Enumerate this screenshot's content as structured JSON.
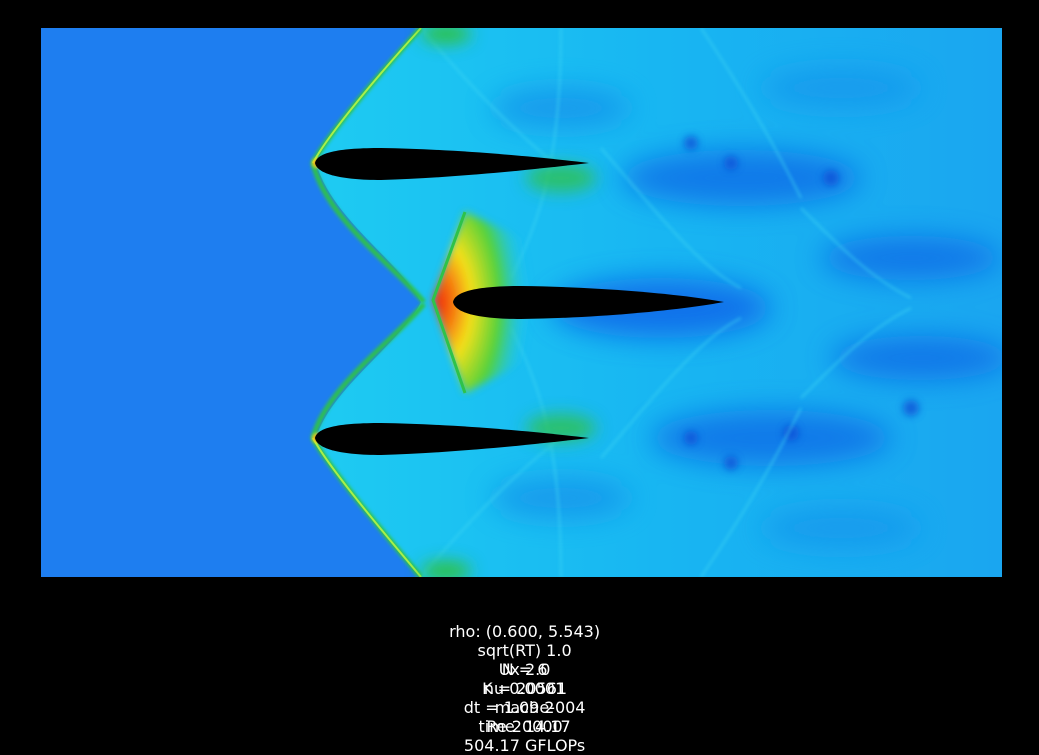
{
  "simulation": {
    "info_line1": [
      "rho: (0.600, 5.543)",
      "sqrt(RT) 1.0",
      "Ux 2.0",
      "nu 0.0001",
      "mach 2",
      "Re 20000"
    ],
    "info_line2": [
      "N = 6",
      "K = 20561",
      "dt = 1.09e-004",
      "time  14.17",
      "504.17 GFLOPs"
    ]
  },
  "colors": {
    "background": "#000000",
    "freestream": "#1e7ef0",
    "wake_light": "#1ecbf2",
    "wake_dark": "#0b5ce8",
    "shock_green": "#2ec24a",
    "hot_yellow": "#f4e11a",
    "hot_red": "#f02a10",
    "airfoil": "#000000"
  }
}
